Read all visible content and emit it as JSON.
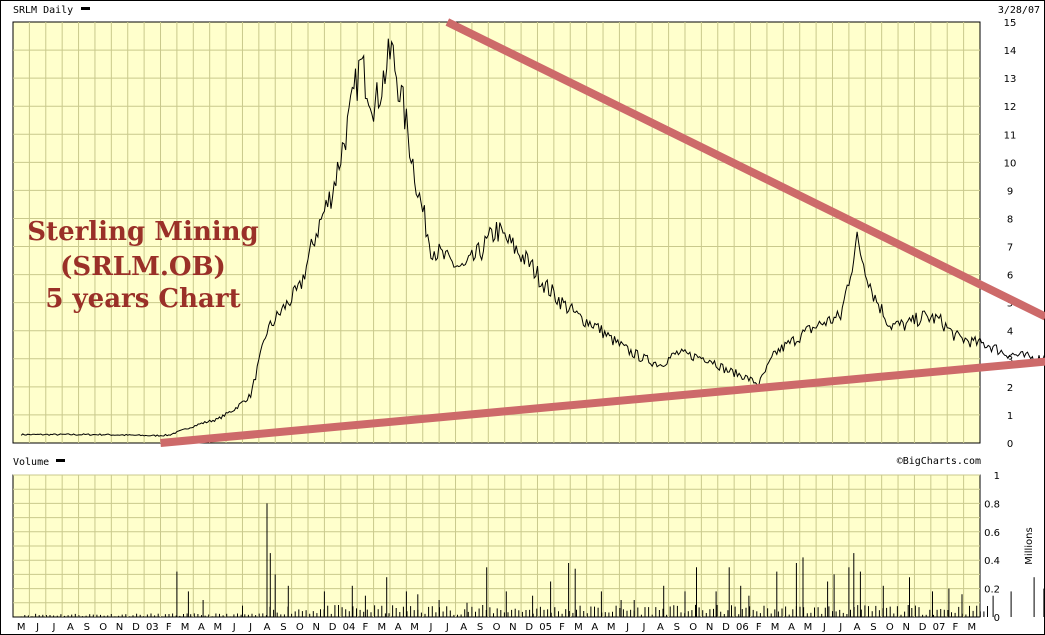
{
  "header": {
    "symbol_label": "SRLM Daily",
    "date": "3/28/07",
    "credit": "©BigCharts.com"
  },
  "overlay": {
    "lines": [
      "Sterling Mining",
      "(SRLM.OB)",
      "5 years Chart"
    ],
    "color": "#9a3028"
  },
  "colors": {
    "panel_bg": "#ffffcc",
    "grid": "#c9c98c",
    "price_line": "#000000",
    "trendline": "#cd6a6a"
  },
  "chart_data": [
    {
      "type": "line",
      "title": "SRLM Daily",
      "y_axis": {
        "position": "right",
        "ylim": [
          0,
          15
        ],
        "ticks": [
          0,
          1,
          2,
          3,
          4,
          5,
          6,
          7,
          8,
          9,
          10,
          11,
          12,
          13,
          14,
          15
        ]
      },
      "grid": true,
      "x_ticks": [
        "M",
        "J",
        "J",
        "A",
        "S",
        "O",
        "N",
        "D",
        "03",
        "F",
        "M",
        "A",
        "M",
        "J",
        "J",
        "A",
        "S",
        "O",
        "N",
        "D",
        "04",
        "F",
        "M",
        "A",
        "M",
        "J",
        "J",
        "A",
        "S",
        "O",
        "N",
        "D",
        "05",
        "F",
        "M",
        "A",
        "M",
        "J",
        "J",
        "A",
        "S",
        "O",
        "N",
        "D",
        "06",
        "F",
        "M",
        "A",
        "M",
        "J",
        "J",
        "A",
        "S",
        "O",
        "N",
        "D",
        "07",
        "F",
        "M"
      ],
      "series": [
        {
          "values": [
            [
              0,
              0.3
            ],
            [
              5,
              0.3
            ],
            [
              8,
              0.26
            ],
            [
              9,
              0.28
            ],
            [
              11,
              0.7
            ],
            [
              12,
              0.85
            ],
            [
              13,
              1.2
            ],
            [
              14,
              1.7
            ],
            [
              15,
              4.0
            ],
            [
              16,
              4.8
            ],
            [
              17,
              5.5
            ],
            [
              18,
              7.5
            ],
            [
              19,
              9.0
            ],
            [
              20,
              11.5
            ],
            [
              20.7,
              13.5
            ],
            [
              21.6,
              12.0
            ],
            [
              22.6,
              14.0
            ],
            [
              23.3,
              12.0
            ],
            [
              24.2,
              9.0
            ],
            [
              25.0,
              7.0
            ],
            [
              26,
              6.5
            ],
            [
              27,
              6.2
            ],
            [
              28,
              6.8
            ],
            [
              29,
              7.6
            ],
            [
              30,
              7.0
            ],
            [
              31,
              6.4
            ],
            [
              32,
              5.6
            ],
            [
              33,
              5.0
            ],
            [
              34,
              4.5
            ],
            [
              35,
              4.2
            ],
            [
              36,
              3.7
            ],
            [
              37,
              3.3
            ],
            [
              38,
              3.0
            ],
            [
              39,
              2.8
            ],
            [
              40,
              3.2
            ],
            [
              41,
              3.1
            ],
            [
              42,
              3.0
            ],
            [
              43,
              2.6
            ],
            [
              44,
              2.4
            ],
            [
              45,
              2.1
            ],
            [
              46,
              3.2
            ],
            [
              47,
              3.6
            ],
            [
              48,
              4.0
            ],
            [
              49,
              4.3
            ],
            [
              50,
              4.5
            ],
            [
              51,
              7.2
            ],
            [
              52,
              5.3
            ],
            [
              53,
              4.2
            ],
            [
              54,
              4.2
            ],
            [
              55,
              4.5
            ],
            [
              56,
              4.4
            ],
            [
              57,
              3.8
            ],
            [
              58,
              3.6
            ],
            [
              59,
              3.5
            ],
            [
              60,
              3.2
            ],
            [
              61,
              3.1
            ],
            [
              62,
              3.0
            ],
            [
              63,
              3.05
            ]
          ]
        }
      ],
      "trendlines": [
        {
          "from": [
            26.0,
            15.0
          ],
          "to": [
            62.5,
            4.5
          ]
        },
        {
          "from": [
            8.5,
            0.0
          ],
          "to": [
            62.5,
            2.9
          ]
        }
      ]
    },
    {
      "type": "bar",
      "title": "Volume",
      "y_axis": {
        "position": "right",
        "ylim": [
          0,
          1
        ],
        "ticks": [
          0,
          0.2,
          0.4,
          0.6,
          0.8,
          1
        ],
        "label": "Millions"
      },
      "grid": true,
      "spikes": [
        [
          9.5,
          0.32
        ],
        [
          10.2,
          0.18
        ],
        [
          11.1,
          0.12
        ],
        [
          13.5,
          0.08
        ],
        [
          15.0,
          0.8
        ],
        [
          15.2,
          0.45
        ],
        [
          15.5,
          0.3
        ],
        [
          16.3,
          0.22
        ],
        [
          18.5,
          0.18
        ],
        [
          20.2,
          0.22
        ],
        [
          21.0,
          0.15
        ],
        [
          22.3,
          0.28
        ],
        [
          23.5,
          0.18
        ],
        [
          24.2,
          0.16
        ],
        [
          25.5,
          0.12
        ],
        [
          27.2,
          0.1
        ],
        [
          28.4,
          0.35
        ],
        [
          29.6,
          0.18
        ],
        [
          31.2,
          0.15
        ],
        [
          32.3,
          0.25
        ],
        [
          33.4,
          0.38
        ],
        [
          33.8,
          0.34
        ],
        [
          35.4,
          0.18
        ],
        [
          36.6,
          0.12
        ],
        [
          37.4,
          0.12
        ],
        [
          39.2,
          0.22
        ],
        [
          40.5,
          0.18
        ],
        [
          41.2,
          0.35
        ],
        [
          42.4,
          0.18
        ],
        [
          43.2,
          0.35
        ],
        [
          43.9,
          0.22
        ],
        [
          44.4,
          0.15
        ],
        [
          46.1,
          0.32
        ],
        [
          47.3,
          0.38
        ],
        [
          47.7,
          0.42
        ],
        [
          49.2,
          0.25
        ],
        [
          49.6,
          0.3
        ],
        [
          50.5,
          0.35
        ],
        [
          50.8,
          0.45
        ],
        [
          51.2,
          0.32
        ],
        [
          52.6,
          0.22
        ],
        [
          54.2,
          0.28
        ],
        [
          55.6,
          0.18
        ],
        [
          56.6,
          0.2
        ],
        [
          57.4,
          0.16
        ],
        [
          59.3,
          0.15
        ],
        [
          60.4,
          0.18
        ],
        [
          61.8,
          0.28
        ],
        [
          62.4,
          0.2
        ]
      ]
    }
  ]
}
